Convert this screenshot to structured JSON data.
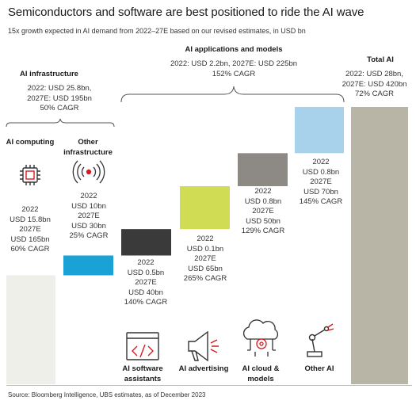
{
  "title": "Semiconductors and software are best positioned to ride the AI wave",
  "subtitle": "15x growth expected in AI demand from 2022–27E based on our revised estimates, in USD bn",
  "source": "Source: Bloomberg Intelligence, UBS estimates, as of December 2023",
  "groups": {
    "infrastructure": {
      "title": "AI infrastructure",
      "values": "2022: USD 25.8bn,\n2027E: USD 195bn\n50% CAGR"
    },
    "applications": {
      "title": "AI applications and models",
      "values": "2022: USD 2.2bn, 2027E: USD 225bn\n152% CAGR"
    },
    "total": {
      "title": "Total AI",
      "values": "2022: USD 28bn,\n2027E: USD 420bn\n72% CAGR"
    }
  },
  "chart_data": {
    "type": "bar",
    "title": "Semiconductors and software are best positioned to ride the AI wave",
    "categories": [
      "AI computing",
      "Other infrastructure",
      "AI software assistants",
      "AI advertising",
      "AI cloud & models",
      "Other AI",
      "Total AI"
    ],
    "series": [
      {
        "values": [
          165,
          30,
          40,
          65,
          50,
          70,
          420
        ]
      }
    ],
    "values_2022": [
      15.8,
      10,
      0.5,
      0.1,
      0.8,
      0.8,
      28
    ],
    "values_2027E": [
      165,
      30,
      40,
      65,
      50,
      70,
      420
    ],
    "cagr_percent": [
      60,
      25,
      140,
      265,
      129,
      145,
      72
    ],
    "colors": [
      "#efefe9",
      "#1aa1d6",
      "#3a3a3a",
      "#cfdc54",
      "#8d8a85",
      "#a8d2ec",
      "#b9b5a6"
    ],
    "icons": [
      "chip-icon",
      "signal-icon",
      "code-window-icon",
      "megaphone-icon",
      "cloud-gear-icon",
      "robot-arm-icon",
      ""
    ],
    "labels": [
      "2022\nUSD 15.8bn\n2027E\nUSD 165bn\n60% CAGR",
      "2022\nUSD 10bn\n2027E\nUSD 30bn\n25% CAGR",
      "2022\nUSD 0.5bn\n2027E\nUSD 40bn\n140% CAGR",
      "2022\nUSD 0.1bn\n2027E\nUSD 65bn\n265% CAGR",
      "2022\nUSD 0.8bn\n2027E\nUSD 50bn\n129% CAGR",
      "2022\nUSD 0.8bn\n2027E\nUSD 70bn\n145% CAGR",
      ""
    ],
    "grid": false
  }
}
